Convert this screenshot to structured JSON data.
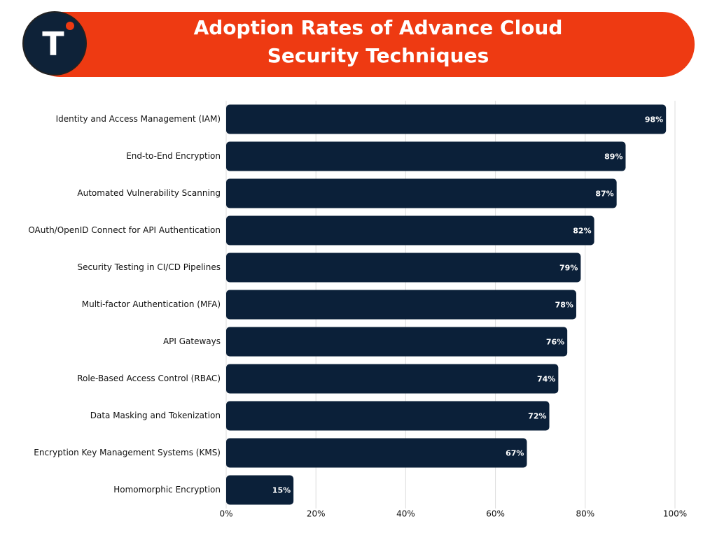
{
  "logo_text": "T",
  "chart_data": {
    "type": "barh",
    "title": "Adoption Rates of Advance Cloud Security Techniques",
    "categories": [
      "Identity and Access Management (IAM)",
      "End-to-End Encryption",
      "Automated Vulnerability Scanning",
      "OAuth/OpenID Connect for API Authentication",
      "Security Testing in CI/CD Pipelines",
      "Multi-factor Authentication (MFA)",
      "API Gateways",
      "Role-Based Access Control (RBAC)",
      "Data Masking and Tokenization",
      "Encryption Key Management Systems (KMS)",
      "Homomorphic Encryption"
    ],
    "values": [
      98,
      89,
      87,
      82,
      79,
      78,
      76,
      74,
      72,
      67,
      15
    ],
    "value_labels": [
      "98%",
      "89%",
      "87%",
      "82%",
      "79%",
      "78%",
      "76%",
      "74%",
      "72%",
      "67%",
      "15%"
    ],
    "color": "#0b2039",
    "xlim": [
      0,
      100
    ],
    "xticks": [
      {
        "value": 0,
        "label": "0%"
      },
      {
        "value": 20,
        "label": "20%"
      },
      {
        "value": 40,
        "label": "40%"
      },
      {
        "value": 60,
        "label": "60%"
      },
      {
        "value": 80,
        "label": "80%"
      },
      {
        "value": 100,
        "label": "100%"
      }
    ],
    "grid": true
  }
}
